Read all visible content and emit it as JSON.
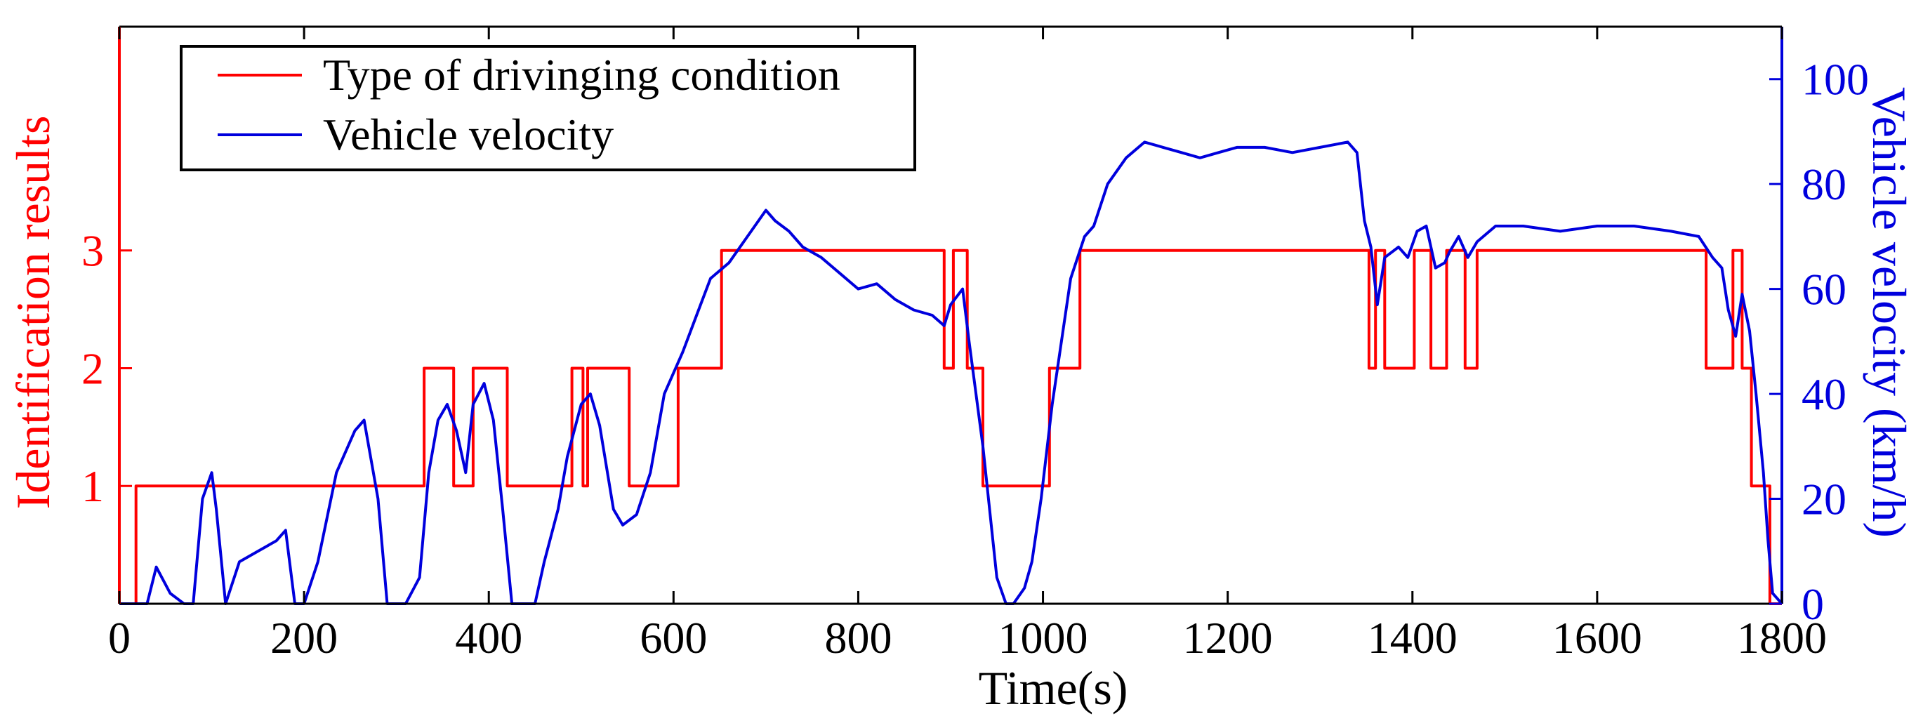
{
  "chart_data": {
    "type": "line",
    "title": "",
    "xlabel": "Time(s)",
    "ylabel_left": "Identification results",
    "ylabel_right": "Vehicle velocity (km/h)",
    "xlim": [
      0,
      1800
    ],
    "ylim_left": [
      0,
      4.9
    ],
    "ylim_right": [
      0,
      110
    ],
    "x_ticks": [
      0,
      200,
      400,
      600,
      800,
      1000,
      1200,
      1400,
      1600,
      1800
    ],
    "y_left_ticks": [
      1,
      2,
      3
    ],
    "y_right_ticks": [
      0,
      20,
      40,
      60,
      80,
      100
    ],
    "grid": false,
    "legend_position": "top-left",
    "colors": {
      "condition": "#ff0000",
      "velocity": "#0000dd",
      "axes": "#000000"
    },
    "series": [
      {
        "name": "Type of drivinging condition",
        "axis": "left",
        "step": true,
        "x": [
          0,
          18,
          330,
          362,
          383,
          420,
          490,
          502,
          507,
          512,
          552,
          605,
          652,
          893,
          903,
          918,
          935,
          1007,
          1040,
          1353,
          1360,
          1370,
          1402,
          1420,
          1437,
          1457,
          1470,
          1718,
          1747,
          1757,
          1767,
          1787,
          1800
        ],
        "y": [
          0,
          1,
          2,
          1,
          2,
          1,
          2,
          1,
          2,
          2,
          1,
          2,
          3,
          2,
          3,
          2,
          1,
          2,
          3,
          2,
          3,
          2,
          3,
          2,
          3,
          2,
          3,
          2,
          3,
          2,
          1,
          0,
          0
        ]
      },
      {
        "name": "Vehicle velocity",
        "axis": "right",
        "x": [
          0,
          30,
          40,
          55,
          70,
          80,
          90,
          100,
          105,
          115,
          130,
          150,
          170,
          180,
          190,
          200,
          215,
          235,
          255,
          265,
          280,
          290,
          300,
          310,
          325,
          335,
          345,
          355,
          365,
          375,
          383,
          395,
          405,
          415,
          425,
          435,
          450,
          460,
          475,
          485,
          500,
          510,
          520,
          535,
          545,
          560,
          575,
          590,
          610,
          625,
          640,
          660,
          680,
          700,
          710,
          725,
          740,
          760,
          780,
          800,
          820,
          840,
          860,
          880,
          893,
          900,
          913,
          920,
          935,
          950,
          960,
          968,
          980,
          988,
          998,
          1010,
          1030,
          1045,
          1055,
          1070,
          1090,
          1110,
          1130,
          1150,
          1170,
          1190,
          1210,
          1240,
          1270,
          1300,
          1330,
          1340,
          1348,
          1355,
          1362,
          1370,
          1385,
          1395,
          1405,
          1415,
          1425,
          1435,
          1440,
          1450,
          1460,
          1470,
          1490,
          1520,
          1560,
          1600,
          1640,
          1680,
          1710,
          1725,
          1735,
          1742,
          1750,
          1757,
          1765,
          1772,
          1780,
          1785,
          1790,
          1800
        ],
        "y": [
          0,
          0,
          7,
          2,
          0,
          0,
          20,
          25,
          18,
          0,
          8,
          10,
          12,
          14,
          0,
          0,
          8,
          25,
          33,
          35,
          20,
          0,
          0,
          0,
          5,
          25,
          35,
          38,
          33,
          25,
          38,
          42,
          35,
          18,
          0,
          0,
          0,
          8,
          18,
          28,
          38,
          40,
          34,
          18,
          15,
          17,
          25,
          40,
          48,
          55,
          62,
          65,
          70,
          75,
          73,
          71,
          68,
          66,
          63,
          60,
          61,
          58,
          56,
          55,
          53,
          57,
          60,
          50,
          30,
          5,
          0,
          0,
          3,
          8,
          20,
          38,
          62,
          70,
          72,
          80,
          85,
          88,
          87,
          86,
          85,
          86,
          87,
          87,
          86,
          87,
          88,
          86,
          73,
          68,
          57,
          66,
          68,
          66,
          71,
          72,
          64,
          65,
          67,
          70,
          66,
          69,
          72,
          72,
          71,
          72,
          72,
          71,
          70,
          66,
          64,
          56,
          51,
          59,
          52,
          40,
          25,
          12,
          2,
          0
        ]
      }
    ]
  },
  "legend": {
    "entries": [
      "Type of drivinging condition",
      "Vehicle velocity"
    ]
  }
}
